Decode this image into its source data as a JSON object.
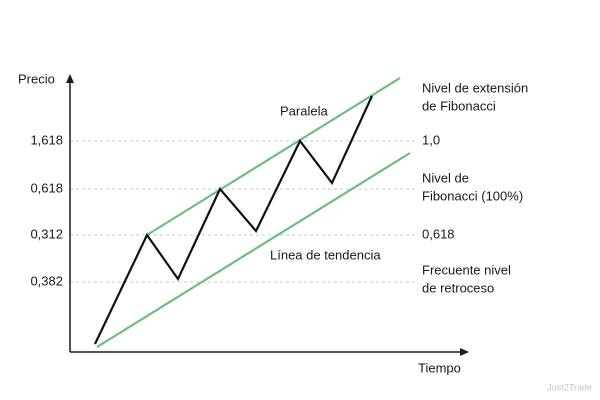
{
  "axes": {
    "y_label": "Precio",
    "x_label": "Tiempo"
  },
  "levels": [
    "1,618",
    "0,618",
    "0,312",
    "0,382"
  ],
  "annotations": {
    "parallel": "Paralela",
    "trendline": "Línea de tendencia"
  },
  "right_labels": [
    {
      "lines": [
        "Nivel de extensión",
        "de Fibonacci"
      ]
    },
    {
      "lines": [
        "1,0"
      ]
    },
    {
      "lines": [
        "Nivel de",
        "Fibonacci (100%)"
      ]
    },
    {
      "lines": [
        "0,618"
      ]
    },
    {
      "lines": [
        "Frecuente nivel",
        "de retroceso"
      ]
    }
  ],
  "watermark": "Just2Trade"
}
